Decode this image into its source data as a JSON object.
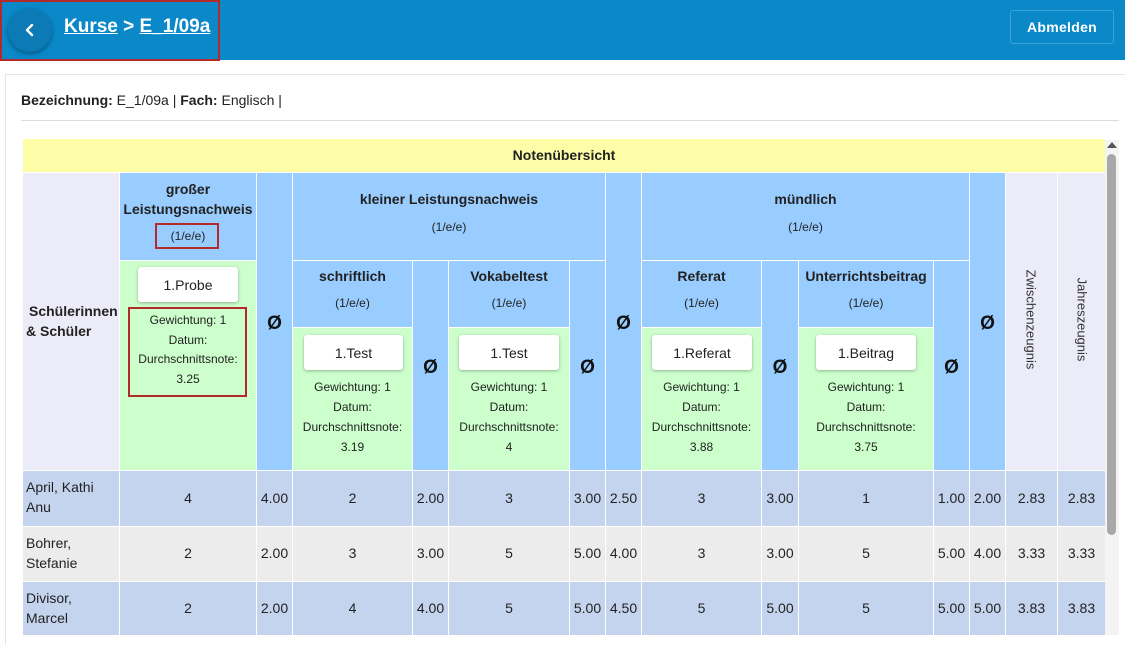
{
  "header": {
    "breadcrumb_root": "Kurse",
    "breadcrumb_sep": " > ",
    "breadcrumb_current": "E_1/09a",
    "logout_label": "Abmelden"
  },
  "info": {
    "bez_label": "Bezeichnung:",
    "bez_value": " E_1/09a | ",
    "fach_label": "Fach:",
    "fach_value": " Englisch |"
  },
  "table": {
    "title": "Notenübersicht",
    "student_header_1": "Schülerinnen",
    "student_header_2": "& Schüler",
    "avg_symbol": "Ø",
    "grosser": {
      "name_1": "großer",
      "name_2": "Leistungsnachweis",
      "weight": "(1/e/e)",
      "exam": "1.Probe",
      "gew": "Gewichtung: 1",
      "datum": "Datum:",
      "dn_label": "Durchschnittsnote:",
      "dn_value": "3.25"
    },
    "kleiner": {
      "name": "kleiner Leistungsnachweis",
      "weight": "(1/e/e)",
      "schriftlich": {
        "name": "schriftlich",
        "weight": "(1/e/e)",
        "exam": "1.Test",
        "gew": "Gewichtung: 1",
        "datum": "Datum:",
        "dn_label": "Durchschnittsnote:",
        "dn_value": "3.19"
      },
      "vokabeltest": {
        "name": "Vokabeltest",
        "weight": "(1/e/e)",
        "exam": "1.Test",
        "gew": "Gewichtung: 1",
        "datum": "Datum:",
        "dn_label": "Durchschnittsnote:",
        "dn_value": "4"
      }
    },
    "muendlich": {
      "name": "mündlich",
      "weight": "(1/e/e)",
      "referat": {
        "name": "Referat",
        "weight": "(1/e/e)",
        "exam": "1.Referat",
        "gew": "Gewichtung: 1",
        "datum": "Datum:",
        "dn_label": "Durchschnittsnote:",
        "dn_value": "3.88"
      },
      "unterricht": {
        "name": "Unterrichtsbeitrag",
        "weight": "(1/e/e)",
        "exam": "1.Beitrag",
        "gew": "Gewichtung: 1",
        "datum": "Datum:",
        "dn_label": "Durchschnittsnote:",
        "dn_value": "3.75"
      }
    },
    "zwischen": "Zwischenzeugnis",
    "jahres": "Jahreszeugnis",
    "rows": [
      {
        "name_1": "April, Kathi",
        "name_2": "Anu",
        "g": "4",
        "g_avg": "4.00",
        "s": "2",
        "s_avg": "2.00",
        "v": "3",
        "v_avg": "3.00",
        "k_avg": "2.50",
        "r": "3",
        "r_avg": "3.00",
        "u": "1",
        "u_avg": "1.00",
        "m_avg": "2.00",
        "zw": "2.83",
        "jz": "2.83"
      },
      {
        "name_1": "Bohrer,",
        "name_2": "Stefanie",
        "g": "2",
        "g_avg": "2.00",
        "s": "3",
        "s_avg": "3.00",
        "v": "5",
        "v_avg": "5.00",
        "k_avg": "4.00",
        "r": "3",
        "r_avg": "3.00",
        "u": "5",
        "u_avg": "5.00",
        "m_avg": "4.00",
        "zw": "3.33",
        "jz": "3.33"
      },
      {
        "name_1": "Divisor,",
        "name_2": "Marcel",
        "g": "2",
        "g_avg": "2.00",
        "s": "4",
        "s_avg": "4.00",
        "v": "5",
        "v_avg": "5.00",
        "k_avg": "4.50",
        "r": "5",
        "r_avg": "5.00",
        "u": "5",
        "u_avg": "5.00",
        "m_avg": "5.00",
        "zw": "3.83",
        "jz": "3.83"
      }
    ]
  }
}
